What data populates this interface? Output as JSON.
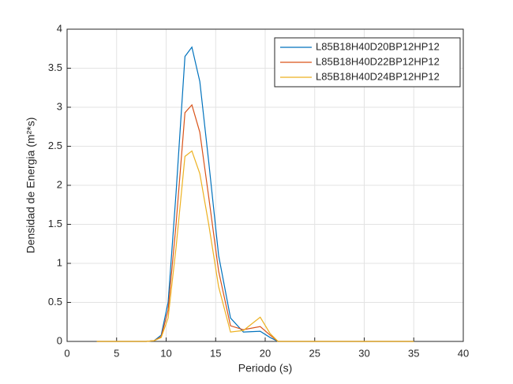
{
  "chart_data": {
    "type": "line",
    "xlabel": "Periodo (s)",
    "ylabel": "Densidad de Energia (m²*s)",
    "x": [
      3,
      5,
      7,
      8,
      8.8,
      9.5,
      10.2,
      11,
      11.9,
      12.6,
      13.4,
      14.3,
      15.3,
      16.5,
      17.8,
      19.5,
      20.5,
      21.3,
      25,
      30,
      35
    ],
    "series": [
      {
        "name": "L85B18H40D20BP12HP12",
        "color": "#0072bd",
        "values": [
          0,
          0,
          0,
          0,
          0.01,
          0.08,
          0.5,
          1.9,
          3.65,
          3.77,
          3.33,
          2.3,
          1.1,
          0.3,
          0.12,
          0.13,
          0.05,
          0,
          0,
          0,
          0
        ]
      },
      {
        "name": "L85B18H40D22BP12HP12",
        "color": "#d95319",
        "values": [
          0,
          0,
          0,
          0,
          0.01,
          0.06,
          0.4,
          1.5,
          2.93,
          3.03,
          2.68,
          1.85,
          0.9,
          0.2,
          0.15,
          0.19,
          0.08,
          0,
          0,
          0,
          0
        ]
      },
      {
        "name": "L85B18H40D24BP12HP12",
        "color": "#edb120",
        "values": [
          0,
          0,
          0,
          0,
          0.01,
          0.05,
          0.3,
          1.2,
          2.37,
          2.44,
          2.15,
          1.5,
          0.7,
          0.12,
          0.14,
          0.31,
          0.1,
          0,
          0,
          0,
          0
        ]
      }
    ],
    "xlim": [
      0,
      40
    ],
    "xticks": [
      0,
      5,
      10,
      15,
      20,
      25,
      30,
      35,
      40
    ],
    "ylim": [
      0,
      4
    ],
    "yticks": [
      0,
      0.5,
      1,
      1.5,
      2,
      2.5,
      3,
      3.5,
      4
    ],
    "grid": true,
    "legend": "northeast"
  }
}
